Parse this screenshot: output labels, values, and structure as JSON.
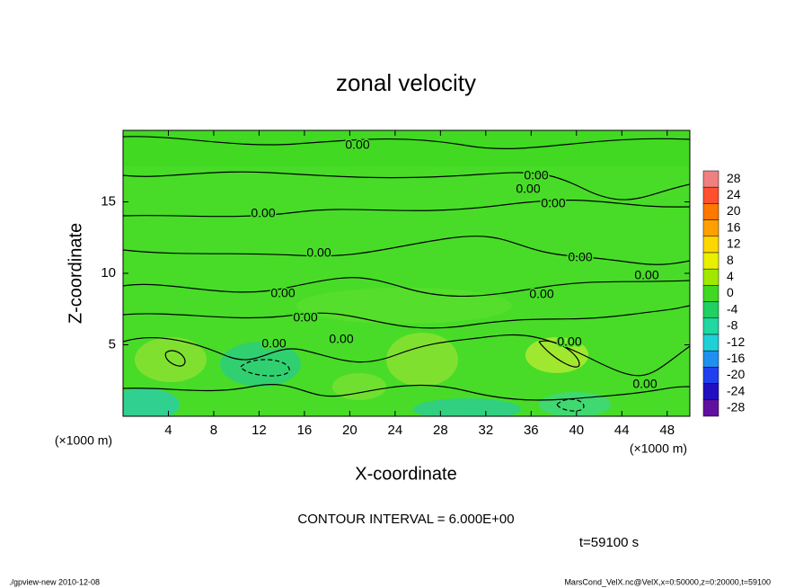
{
  "chart_data": {
    "type": "contour",
    "title": "zonal velocity",
    "xlabel": "X-coordinate",
    "ylabel": "Z-coordinate",
    "xunit": "(×1000 m)",
    "yunit": "(×1000 m)",
    "xlim": [
      0,
      50
    ],
    "ylim": [
      0,
      20
    ],
    "xticks": [
      4,
      8,
      12,
      16,
      20,
      24,
      28,
      32,
      36,
      40,
      44,
      48
    ],
    "yticks": [
      5,
      10,
      15
    ],
    "contour_labels": [
      "0.00",
      "0.00",
      "0.00",
      "0.00",
      "0.00",
      "0.00",
      "0.00",
      "0.00",
      "0.00",
      "0.00",
      "0.00",
      "0.00",
      "0.00",
      "0.00",
      "0.00"
    ],
    "colorbar": {
      "levels": [
        28,
        24,
        20,
        16,
        12,
        8,
        4,
        0,
        -4,
        -8,
        -12,
        -16,
        -20,
        -24,
        -28
      ],
      "colors": [
        "#f08080",
        "#ff5030",
        "#ff7800",
        "#ffa000",
        "#ffd700",
        "#e8f000",
        "#a0e800",
        "#40d820",
        "#20d060",
        "#20d8a0",
        "#20d0d8",
        "#2090f0",
        "#2040f0",
        "#2010c0",
        "#6010a0"
      ]
    },
    "annotations": [
      "CONTOUR INTERVAL = 6.000E+00",
      "t=59100 s"
    ],
    "footer_left": "./gpview-new  2010-12-08",
    "footer_right": "MarsCond_VelX.nc@VelX,x=0:50000,z=0:20000,t=59100"
  }
}
